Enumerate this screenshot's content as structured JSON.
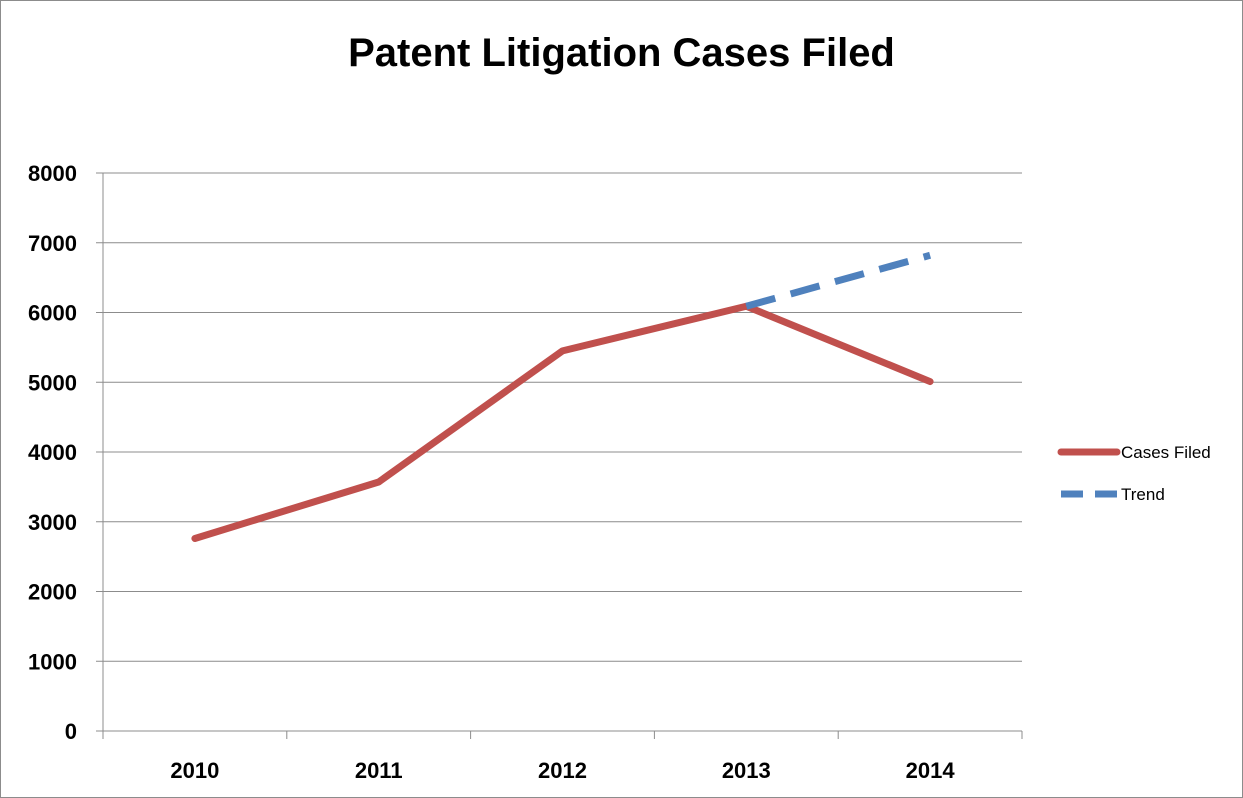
{
  "chart_data": {
    "type": "line",
    "title": "Patent Litigation Cases Filed",
    "xlabel": "",
    "ylabel": "",
    "categories": [
      "2010",
      "2011",
      "2012",
      "2013",
      "2014"
    ],
    "ylim": [
      0,
      8000
    ],
    "yticks": [
      0,
      1000,
      2000,
      3000,
      4000,
      5000,
      6000,
      7000,
      8000
    ],
    "grid": true,
    "legend_position": "right",
    "series": [
      {
        "name": "Cases Filed",
        "color": "#c0504d",
        "style": "solid",
        "values": [
          2760,
          3570,
          5450,
          6090,
          5010
        ]
      },
      {
        "name": "Trend",
        "color": "#4f81bd",
        "style": "dashed",
        "values": [
          null,
          null,
          null,
          6090,
          6820
        ]
      }
    ]
  }
}
